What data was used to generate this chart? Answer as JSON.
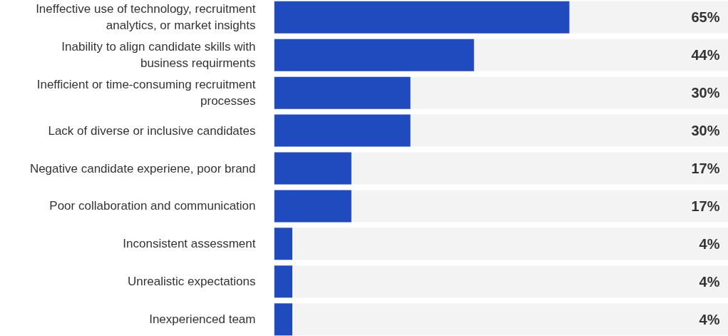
{
  "chart_data": {
    "type": "bar",
    "orientation": "horizontal",
    "categories": [
      "Ineffective use of technology, recruitment analytics, or market insights",
      "Inability to align candidate skills with business requirments",
      "Inefficient or time-consuming recruitment processes",
      "Lack of diverse or inclusive candidates",
      "Negative candidate experiene, poor brand",
      "Poor collaboration and communication",
      "Inconsistent assessment",
      "Unrealistic expectations",
      "Inexperienced team"
    ],
    "xlim": [
      0,
      100
    ],
    "tick_labels": "y",
    "grid": false,
    "series": [
      {
        "color": "#1f4bbf",
        "values": [
          65,
          44,
          30,
          30,
          17,
          17,
          4,
          4,
          4
        ],
        "value_labels": [
          "65%",
          "44%",
          "30%",
          "30%",
          "17%",
          "17%",
          "4%",
          "4%",
          "4%"
        ]
      }
    ]
  }
}
